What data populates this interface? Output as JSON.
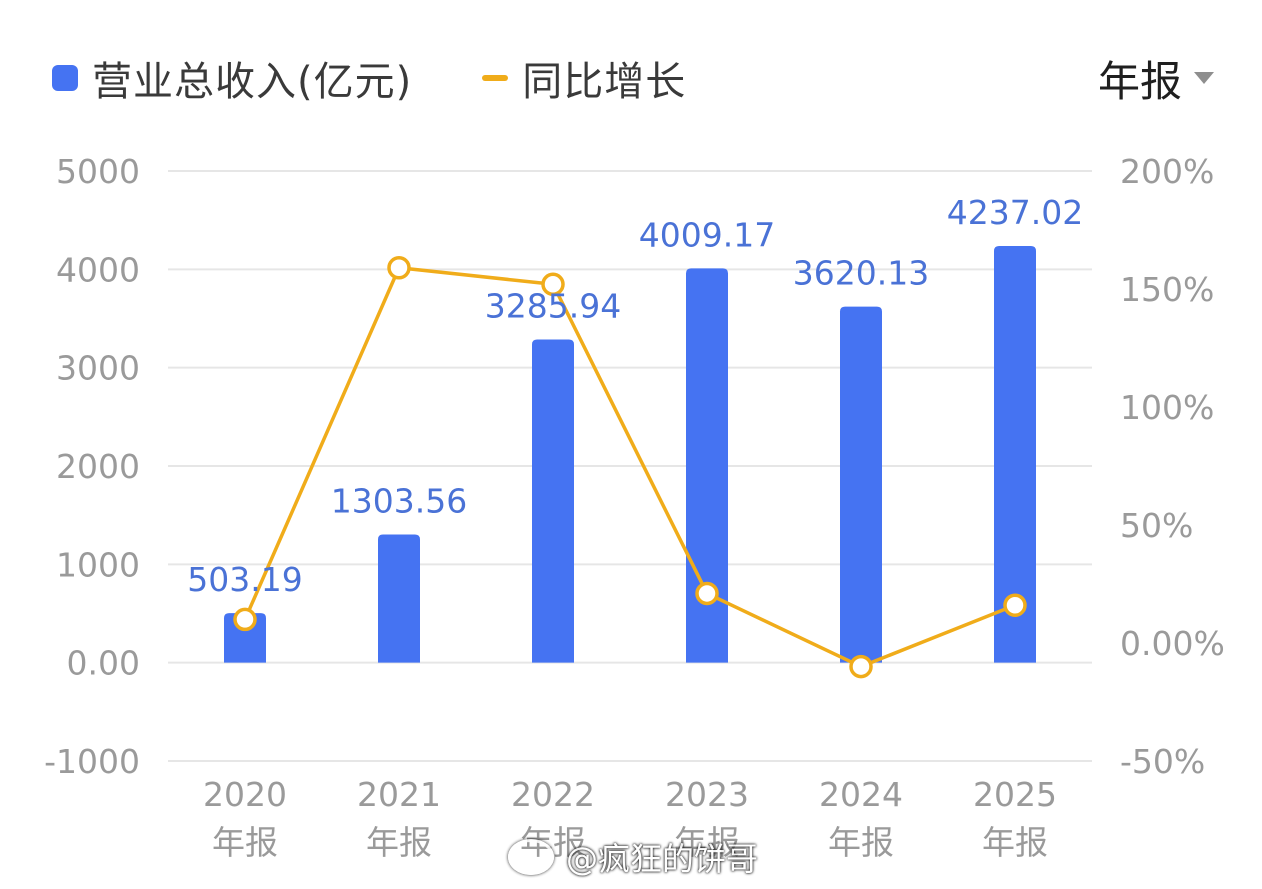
{
  "legend": {
    "bar_label": "营业总收入(亿元)",
    "line_label": "同比增长"
  },
  "period_select": {
    "label": "年报"
  },
  "colors": {
    "bar": "#4573f2",
    "line": "#f0ac1a",
    "value_label": "#4a72d6",
    "axis_text": "#9a9a9a",
    "grid": "#e6e6e6"
  },
  "watermark": {
    "text": "@疯狂的饼哥"
  },
  "chart_data": {
    "type": "bar",
    "categories": [
      "2020\n年报",
      "2021\n年报",
      "2022\n年报",
      "2023\n年报",
      "2024\n年报",
      "2025\n年报"
    ],
    "category_lines": [
      [
        "2020",
        "年报"
      ],
      [
        "2021",
        "年报"
      ],
      [
        "2022",
        "年报"
      ],
      [
        "2023",
        "年报"
      ],
      [
        "2024",
        "年报"
      ],
      [
        "2025",
        "年报"
      ]
    ],
    "series": [
      {
        "name": "营业总收入(亿元)",
        "type": "bar",
        "axis": "left",
        "values": [
          503.19,
          1303.56,
          3285.94,
          4009.17,
          3620.13,
          4237.02
        ],
        "labels": [
          "503.19",
          "1303.56",
          "3285.94",
          "4009.17",
          "3620.13",
          "4237.02"
        ]
      },
      {
        "name": "同比增长",
        "type": "line",
        "axis": "right",
        "values": [
          10,
          159,
          152,
          21,
          -10,
          16
        ]
      }
    ],
    "left_axis": {
      "ticks": [
        5000,
        4000,
        3000,
        2000,
        1000,
        0,
        -1000
      ],
      "tick_labels": [
        "5000",
        "4000",
        "3000",
        "2000",
        "1000",
        "0.00",
        "-1000"
      ],
      "ylim": [
        -1000,
        5000
      ]
    },
    "right_axis": {
      "ticks": [
        200,
        150,
        100,
        50,
        0,
        -50
      ],
      "tick_labels": [
        "200%",
        "150%",
        "100%",
        "50%",
        "0.00%",
        "-50%"
      ],
      "ylim": [
        -50,
        200
      ]
    },
    "grid": true,
    "legend_position": "top-left"
  }
}
